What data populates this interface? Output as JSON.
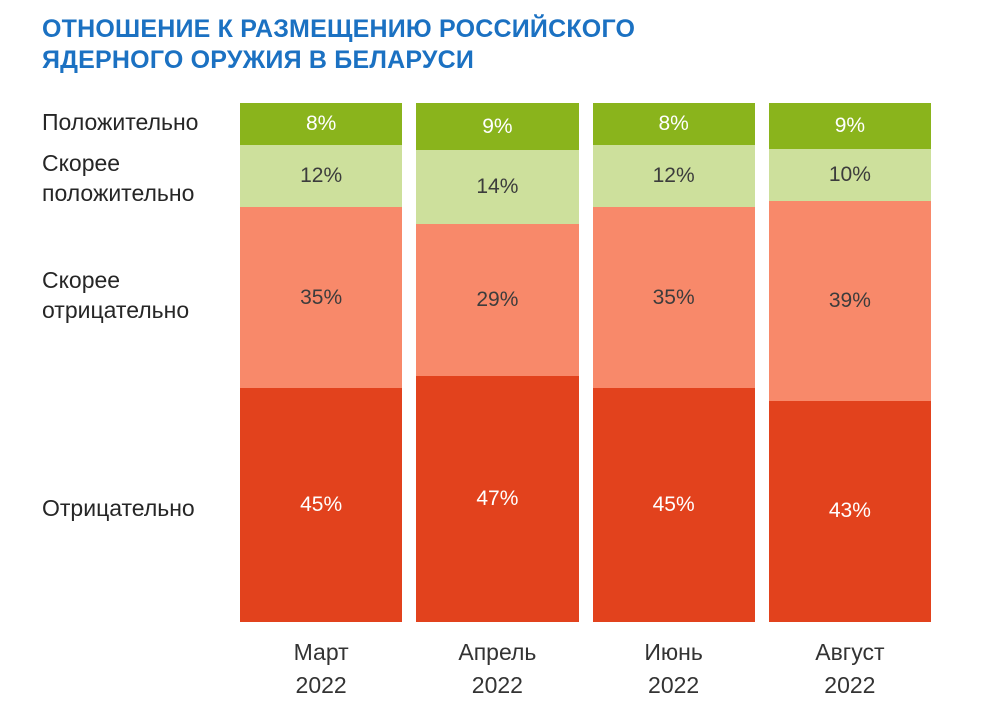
{
  "page": {
    "background": "#ffffff"
  },
  "chart_data": {
    "type": "bar",
    "stacked": true,
    "orientation": "vertical",
    "title": "ОТНОШЕНИЕ К РАЗМЕЩЕНИЮ РОССИЙСКОГО\nЯДЕРНОГО ОРУЖИЯ В БЕЛАРУСИ",
    "title_color": "#1b71c2",
    "categories": [
      "Март\n2022",
      "Апрель\n2022",
      "Июнь\n2022",
      "Август\n2022"
    ],
    "series": [
      {
        "name": "Положительно",
        "values": [
          8,
          9,
          8,
          9
        ],
        "color": "#8ab41c",
        "label_color": "#ffffff"
      },
      {
        "name": "Скорее положительно",
        "values": [
          12,
          14,
          12,
          10
        ],
        "color": "#cde09c",
        "label_color": "#3c3c3c"
      },
      {
        "name": "Скорее отрицательно",
        "values": [
          35,
          29,
          35,
          39
        ],
        "color": "#f8896a",
        "label_color": "#3c3c3c"
      },
      {
        "name": "Отрицательно",
        "values": [
          45,
          47,
          45,
          43
        ],
        "color": "#e2421d",
        "label_color": "#ffffff"
      }
    ],
    "value_suffix": "%",
    "legend_position": "left",
    "grid": false,
    "axes": "none",
    "ylim": [
      0,
      100
    ]
  }
}
